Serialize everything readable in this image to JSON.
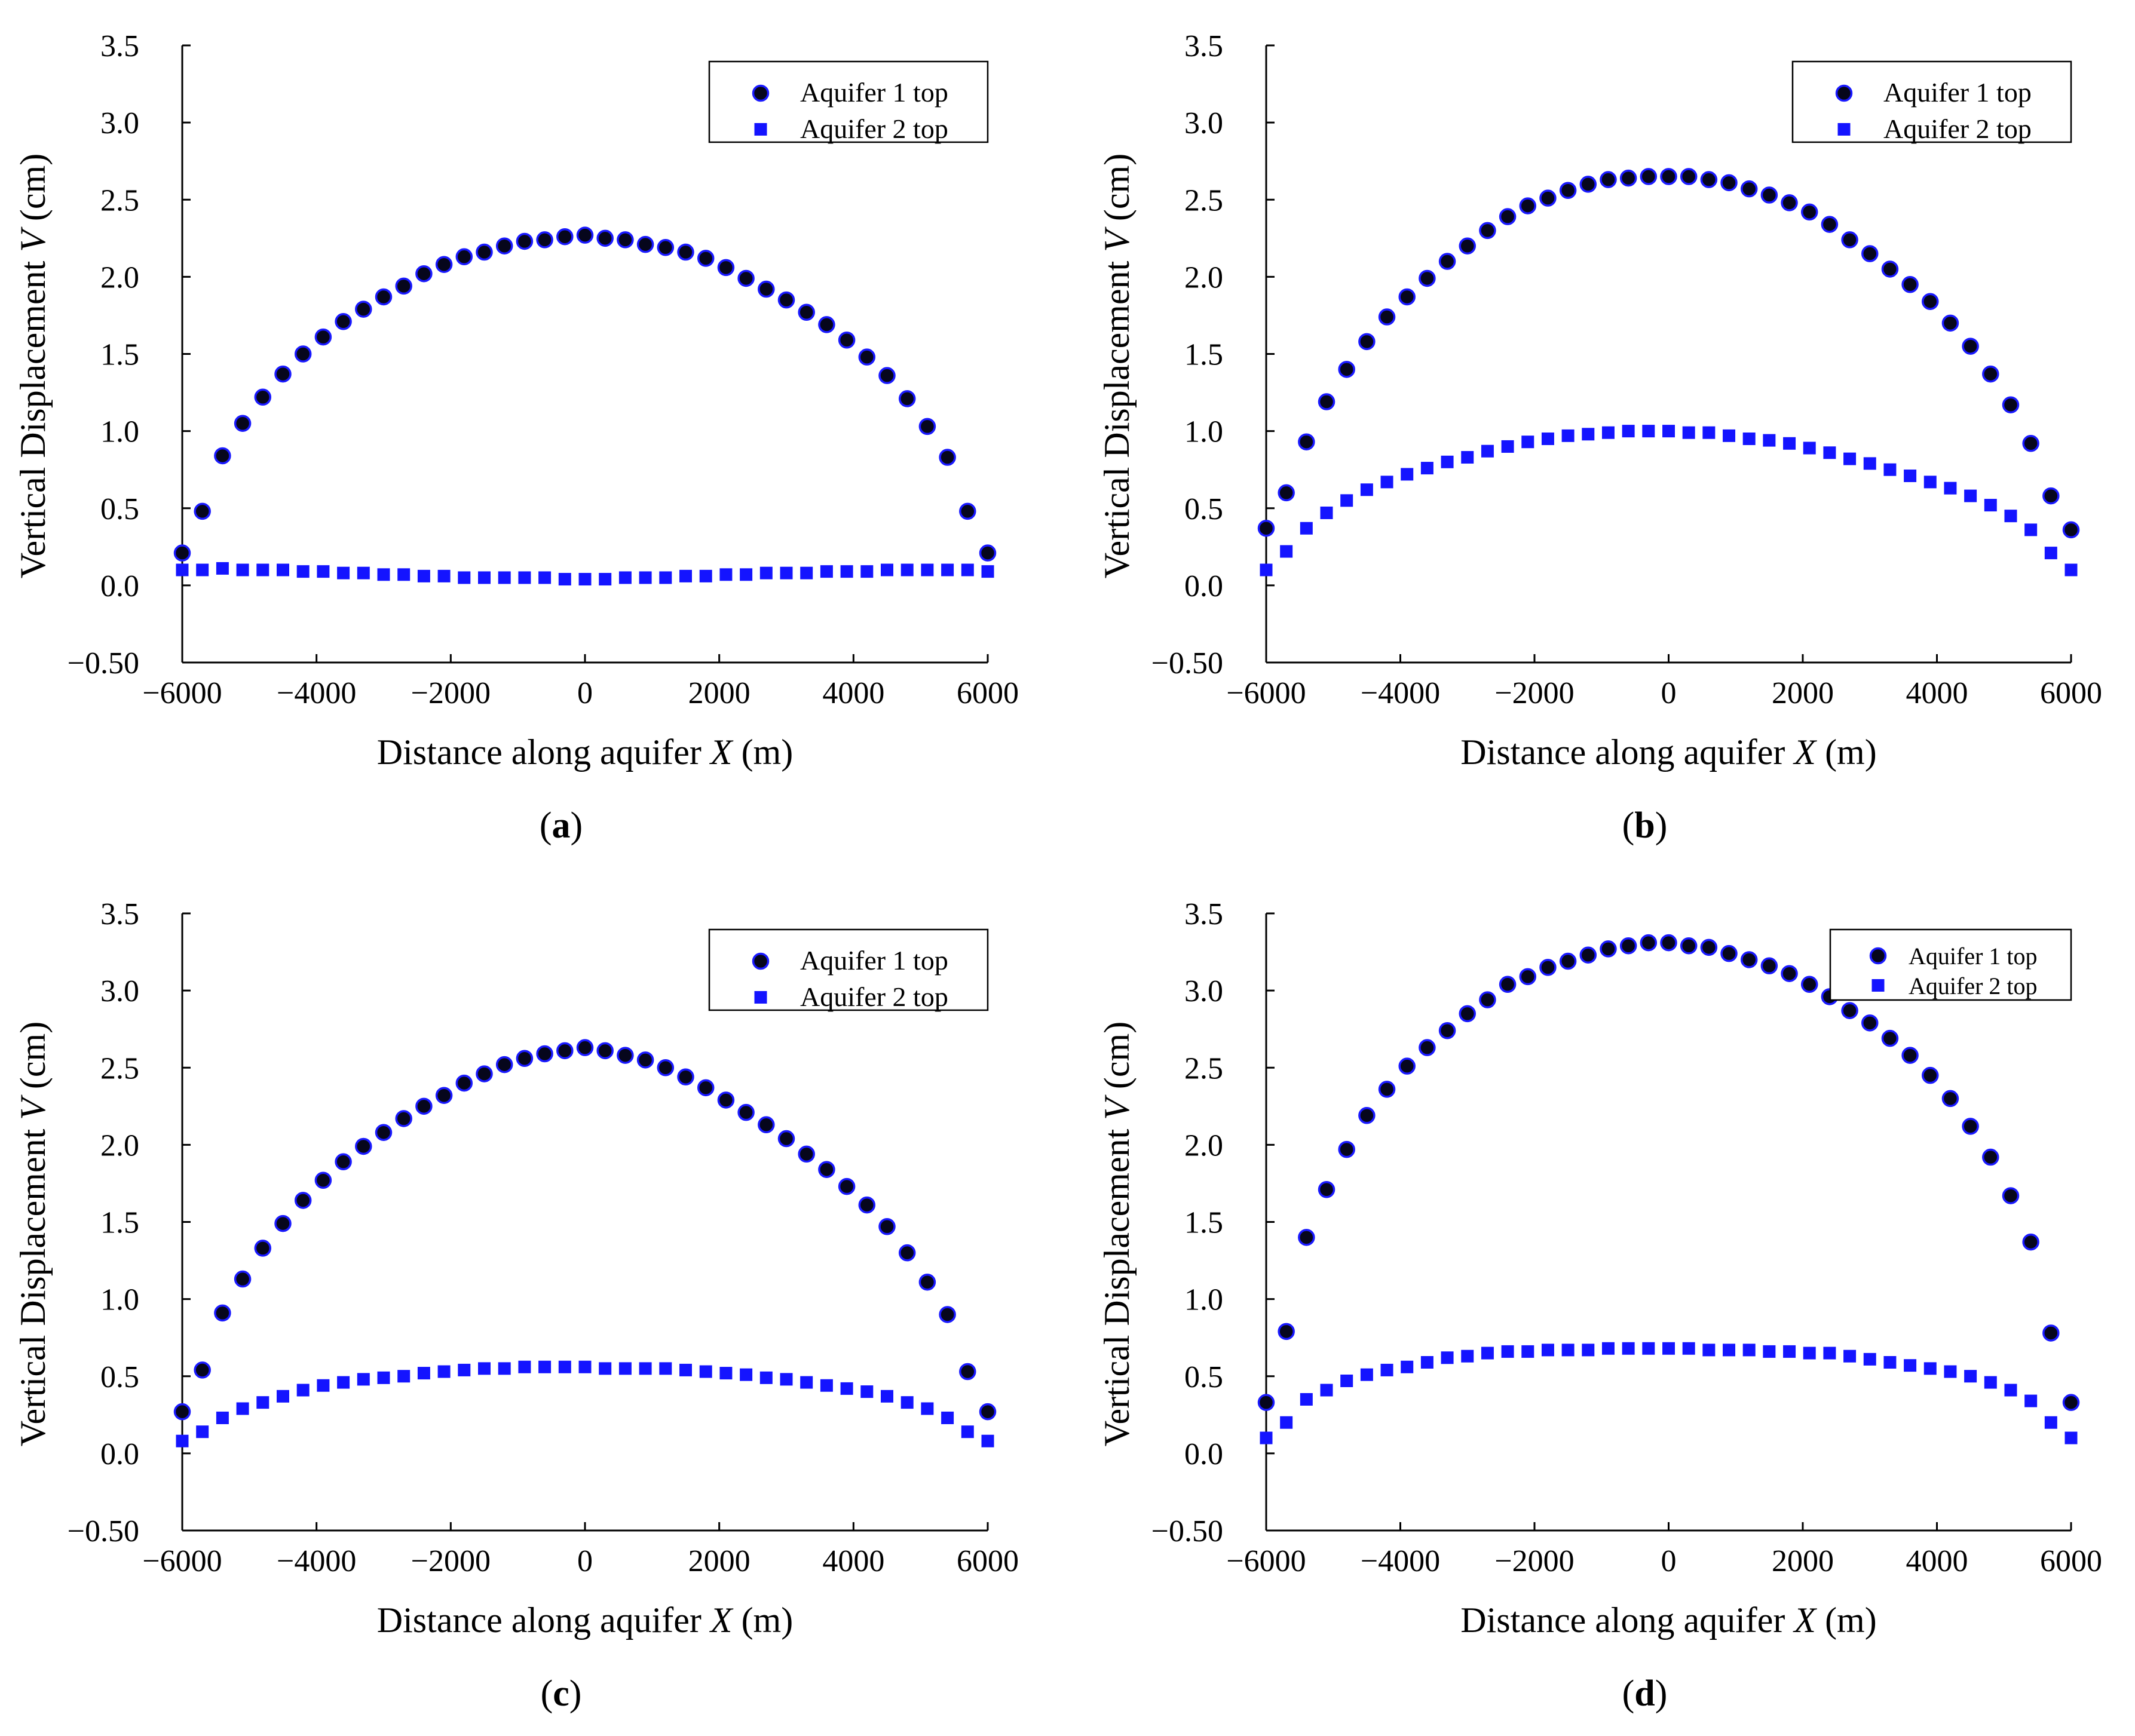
{
  "figure": {
    "panels": [
      {
        "caption": {
          "open": "(",
          "letter": "a",
          "close": ")"
        }
      },
      {
        "caption": {
          "open": "(",
          "letter": "b",
          "close": ")"
        }
      },
      {
        "caption": {
          "open": "(",
          "letter": "c",
          "close": ")"
        }
      },
      {
        "caption": {
          "open": "(",
          "letter": "d",
          "close": ")"
        }
      }
    ]
  },
  "colors": {
    "aquifer1_fill": "#06061c",
    "aquifer1_stroke": "#1a1aff",
    "aquifer2_fill": "#1414ff",
    "axis": "#000000"
  },
  "chart_data": [
    {
      "type": "scatter",
      "panel": "a",
      "xlabel": {
        "prefix": "Distance along aquifer ",
        "var": "X",
        "suffix": " (m)"
      },
      "ylabel": {
        "prefix": "Vertical Displacement ",
        "var": "V",
        "suffix": " (cm)"
      },
      "xlim": [
        -6000,
        6000
      ],
      "ylim": [
        -0.5,
        3.5
      ],
      "xticks": [
        -6000,
        -4000,
        -2000,
        0,
        2000,
        4000,
        6000
      ],
      "xtick_labels": [
        "−6000",
        "−4000",
        "−2000",
        "0",
        "2000",
        "4000",
        "6000"
      ],
      "yticks": [
        -0.5,
        0,
        0.5,
        1,
        1.5,
        2,
        2.5,
        3,
        3.5
      ],
      "ytick_labels": [
        "−0.50",
        "0.0",
        "0.5",
        "1.0",
        "1.5",
        "2.0",
        "2.5",
        "3.0",
        "3.5"
      ],
      "legend": {
        "position": "top-right"
      },
      "x": [
        -6000,
        -5700,
        -5400,
        -5100,
        -4800,
        -4500,
        -4200,
        -3900,
        -3600,
        -3300,
        -3000,
        -2700,
        -2400,
        -2100,
        -1800,
        -1500,
        -1200,
        -900,
        -600,
        -300,
        0,
        300,
        600,
        900,
        1200,
        1500,
        1800,
        2100,
        2400,
        2700,
        3000,
        3300,
        3600,
        3900,
        4200,
        4500,
        4800,
        5100,
        5400,
        5700,
        6000
      ],
      "series": [
        {
          "name": "Aquifer 1 top",
          "marker": "circle",
          "values": [
            0.21,
            0.48,
            0.84,
            1.05,
            1.22,
            1.37,
            1.5,
            1.61,
            1.71,
            1.79,
            1.87,
            1.94,
            2.02,
            2.08,
            2.13,
            2.16,
            2.2,
            2.23,
            2.24,
            2.26,
            2.27,
            2.25,
            2.24,
            2.21,
            2.19,
            2.16,
            2.12,
            2.06,
            1.99,
            1.92,
            1.85,
            1.77,
            1.69,
            1.59,
            1.48,
            1.36,
            1.21,
            1.03,
            0.83,
            0.48,
            0.21
          ]
        },
        {
          "name": "Aquifer 2 top",
          "marker": "square",
          "values": [
            0.1,
            0.1,
            0.11,
            0.1,
            0.1,
            0.1,
            0.09,
            0.09,
            0.08,
            0.08,
            0.07,
            0.07,
            0.06,
            0.06,
            0.05,
            0.05,
            0.05,
            0.05,
            0.05,
            0.04,
            0.04,
            0.04,
            0.05,
            0.05,
            0.05,
            0.06,
            0.06,
            0.07,
            0.07,
            0.08,
            0.08,
            0.08,
            0.09,
            0.09,
            0.09,
            0.1,
            0.1,
            0.1,
            0.1,
            0.1,
            0.09
          ]
        }
      ]
    },
    {
      "type": "scatter",
      "panel": "b",
      "xlabel": {
        "prefix": "Distance along aquifer ",
        "var": "X",
        "suffix": " (m)"
      },
      "ylabel": {
        "prefix": "Vertical Displacement ",
        "var": "V",
        "suffix": " (cm)"
      },
      "xlim": [
        -6000,
        6000
      ],
      "ylim": [
        -0.5,
        3.5
      ],
      "xticks": [
        -6000,
        -4000,
        -2000,
        0,
        2000,
        4000,
        6000
      ],
      "xtick_labels": [
        "−6000",
        "−4000",
        "−2000",
        "0",
        "2000",
        "4000",
        "6000"
      ],
      "yticks": [
        -0.5,
        0,
        0.5,
        1,
        1.5,
        2,
        2.5,
        3,
        3.5
      ],
      "ytick_labels": [
        "−0.50",
        "0.0",
        "0.5",
        "1.0",
        "1.5",
        "2.0",
        "2.5",
        "3.0",
        "3.5"
      ],
      "legend": {
        "position": "top-right"
      },
      "x": [
        -6000,
        -5700,
        -5400,
        -5100,
        -4800,
        -4500,
        -4200,
        -3900,
        -3600,
        -3300,
        -3000,
        -2700,
        -2400,
        -2100,
        -1800,
        -1500,
        -1200,
        -900,
        -600,
        -300,
        0,
        300,
        600,
        900,
        1200,
        1500,
        1800,
        2100,
        2400,
        2700,
        3000,
        3300,
        3600,
        3900,
        4200,
        4500,
        4800,
        5100,
        5400,
        5700,
        6000
      ],
      "series": [
        {
          "name": "Aquifer 1 top",
          "marker": "circle",
          "values": [
            0.37,
            0.6,
            0.93,
            1.19,
            1.4,
            1.58,
            1.74,
            1.87,
            1.99,
            2.1,
            2.2,
            2.3,
            2.39,
            2.46,
            2.51,
            2.56,
            2.6,
            2.63,
            2.64,
            2.65,
            2.65,
            2.65,
            2.63,
            2.61,
            2.57,
            2.53,
            2.48,
            2.42,
            2.34,
            2.24,
            2.15,
            2.05,
            1.95,
            1.84,
            1.7,
            1.55,
            1.37,
            1.17,
            0.92,
            0.58,
            0.36
          ]
        },
        {
          "name": "Aquifer 2 top",
          "marker": "square",
          "values": [
            0.1,
            0.22,
            0.37,
            0.47,
            0.55,
            0.62,
            0.67,
            0.72,
            0.76,
            0.8,
            0.83,
            0.87,
            0.9,
            0.93,
            0.95,
            0.97,
            0.98,
            0.99,
            1.0,
            1.0,
            1.0,
            0.99,
            0.99,
            0.97,
            0.95,
            0.94,
            0.92,
            0.89,
            0.86,
            0.82,
            0.79,
            0.75,
            0.71,
            0.67,
            0.63,
            0.58,
            0.52,
            0.45,
            0.36,
            0.21,
            0.1
          ]
        }
      ]
    },
    {
      "type": "scatter",
      "panel": "c",
      "xlabel": {
        "prefix": "Distance along aquifer ",
        "var": "X",
        "suffix": " (m)"
      },
      "ylabel": {
        "prefix": "Vertical Displacement ",
        "var": "V",
        "suffix": " (cm)"
      },
      "xlim": [
        -6000,
        6000
      ],
      "ylim": [
        -0.5,
        3.5
      ],
      "xticks": [
        -6000,
        -4000,
        -2000,
        0,
        2000,
        4000,
        6000
      ],
      "xtick_labels": [
        "−6000",
        "−4000",
        "−2000",
        "0",
        "2000",
        "4000",
        "6000"
      ],
      "yticks": [
        -0.5,
        0,
        0.5,
        1,
        1.5,
        2,
        2.5,
        3,
        3.5
      ],
      "ytick_labels": [
        "−0.50",
        "0.0",
        "0.5",
        "1.0",
        "1.5",
        "2.0",
        "2.5",
        "3.0",
        "3.5"
      ],
      "legend": {
        "position": "top-right"
      },
      "x": [
        -6000,
        -5700,
        -5400,
        -5100,
        -4800,
        -4500,
        -4200,
        -3900,
        -3600,
        -3300,
        -3000,
        -2700,
        -2400,
        -2100,
        -1800,
        -1500,
        -1200,
        -900,
        -600,
        -300,
        0,
        300,
        600,
        900,
        1200,
        1500,
        1800,
        2100,
        2400,
        2700,
        3000,
        3300,
        3600,
        3900,
        4200,
        4500,
        4800,
        5100,
        5400,
        5700,
        6000
      ],
      "series": [
        {
          "name": "Aquifer 1 top",
          "marker": "circle",
          "values": [
            0.27,
            0.54,
            0.91,
            1.13,
            1.33,
            1.49,
            1.64,
            1.77,
            1.89,
            1.99,
            2.08,
            2.17,
            2.25,
            2.32,
            2.4,
            2.46,
            2.52,
            2.56,
            2.59,
            2.61,
            2.63,
            2.61,
            2.58,
            2.55,
            2.5,
            2.44,
            2.37,
            2.29,
            2.21,
            2.13,
            2.04,
            1.94,
            1.84,
            1.73,
            1.61,
            1.47,
            1.3,
            1.11,
            0.9,
            0.53,
            0.27
          ]
        },
        {
          "name": "Aquifer 2 top",
          "marker": "square",
          "values": [
            0.08,
            0.14,
            0.23,
            0.29,
            0.33,
            0.37,
            0.41,
            0.44,
            0.46,
            0.48,
            0.49,
            0.5,
            0.52,
            0.53,
            0.54,
            0.55,
            0.55,
            0.56,
            0.56,
            0.56,
            0.56,
            0.55,
            0.55,
            0.55,
            0.55,
            0.54,
            0.53,
            0.52,
            0.51,
            0.49,
            0.48,
            0.46,
            0.44,
            0.42,
            0.4,
            0.37,
            0.33,
            0.29,
            0.23,
            0.14,
            0.08
          ]
        }
      ]
    },
    {
      "type": "scatter",
      "panel": "d",
      "xlabel": {
        "prefix": "Distance along aquifer ",
        "var": "X",
        "suffix": " (m)"
      },
      "ylabel": {
        "prefix": "Vertical Displacement ",
        "var": "V",
        "suffix": " (cm)"
      },
      "xlim": [
        -6000,
        6000
      ],
      "ylim": [
        -0.5,
        3.5
      ],
      "xticks": [
        -6000,
        -4000,
        -2000,
        0,
        2000,
        4000,
        6000
      ],
      "xtick_labels": [
        "−6000",
        "−4000",
        "−2000",
        "0",
        "2000",
        "4000",
        "6000"
      ],
      "yticks": [
        -0.5,
        0,
        0.5,
        1,
        1.5,
        2,
        2.5,
        3,
        3.5
      ],
      "ytick_labels": [
        "−0.50",
        "0.0",
        "0.5",
        "1.0",
        "1.5",
        "2.0",
        "2.5",
        "3.0",
        "3.5"
      ],
      "legend": {
        "position": "top-right",
        "size": "small"
      },
      "x": [
        -6000,
        -5700,
        -5400,
        -5100,
        -4800,
        -4500,
        -4200,
        -3900,
        -3600,
        -3300,
        -3000,
        -2700,
        -2400,
        -2100,
        -1800,
        -1500,
        -1200,
        -900,
        -600,
        -300,
        0,
        300,
        600,
        900,
        1200,
        1500,
        1800,
        2100,
        2400,
        2700,
        3000,
        3300,
        3600,
        3900,
        4200,
        4500,
        4800,
        5100,
        5400,
        5700,
        6000
      ],
      "series": [
        {
          "name": "Aquifer 1 top",
          "marker": "circle",
          "values": [
            0.33,
            0.79,
            1.4,
            1.71,
            1.97,
            2.19,
            2.36,
            2.51,
            2.63,
            2.74,
            2.85,
            2.94,
            3.04,
            3.09,
            3.15,
            3.19,
            3.23,
            3.27,
            3.29,
            3.31,
            3.31,
            3.29,
            3.28,
            3.24,
            3.2,
            3.16,
            3.11,
            3.04,
            2.96,
            2.87,
            2.79,
            2.69,
            2.58,
            2.45,
            2.3,
            2.12,
            1.92,
            1.67,
            1.37,
            0.78,
            0.33
          ]
        },
        {
          "name": "Aquifer 2 top",
          "marker": "square",
          "values": [
            0.1,
            0.2,
            0.35,
            0.41,
            0.47,
            0.51,
            0.54,
            0.56,
            0.59,
            0.62,
            0.63,
            0.65,
            0.66,
            0.66,
            0.67,
            0.67,
            0.67,
            0.68,
            0.68,
            0.68,
            0.68,
            0.68,
            0.67,
            0.67,
            0.67,
            0.66,
            0.66,
            0.65,
            0.65,
            0.63,
            0.61,
            0.59,
            0.57,
            0.55,
            0.53,
            0.5,
            0.46,
            0.41,
            0.34,
            0.2,
            0.1
          ]
        }
      ]
    }
  ]
}
